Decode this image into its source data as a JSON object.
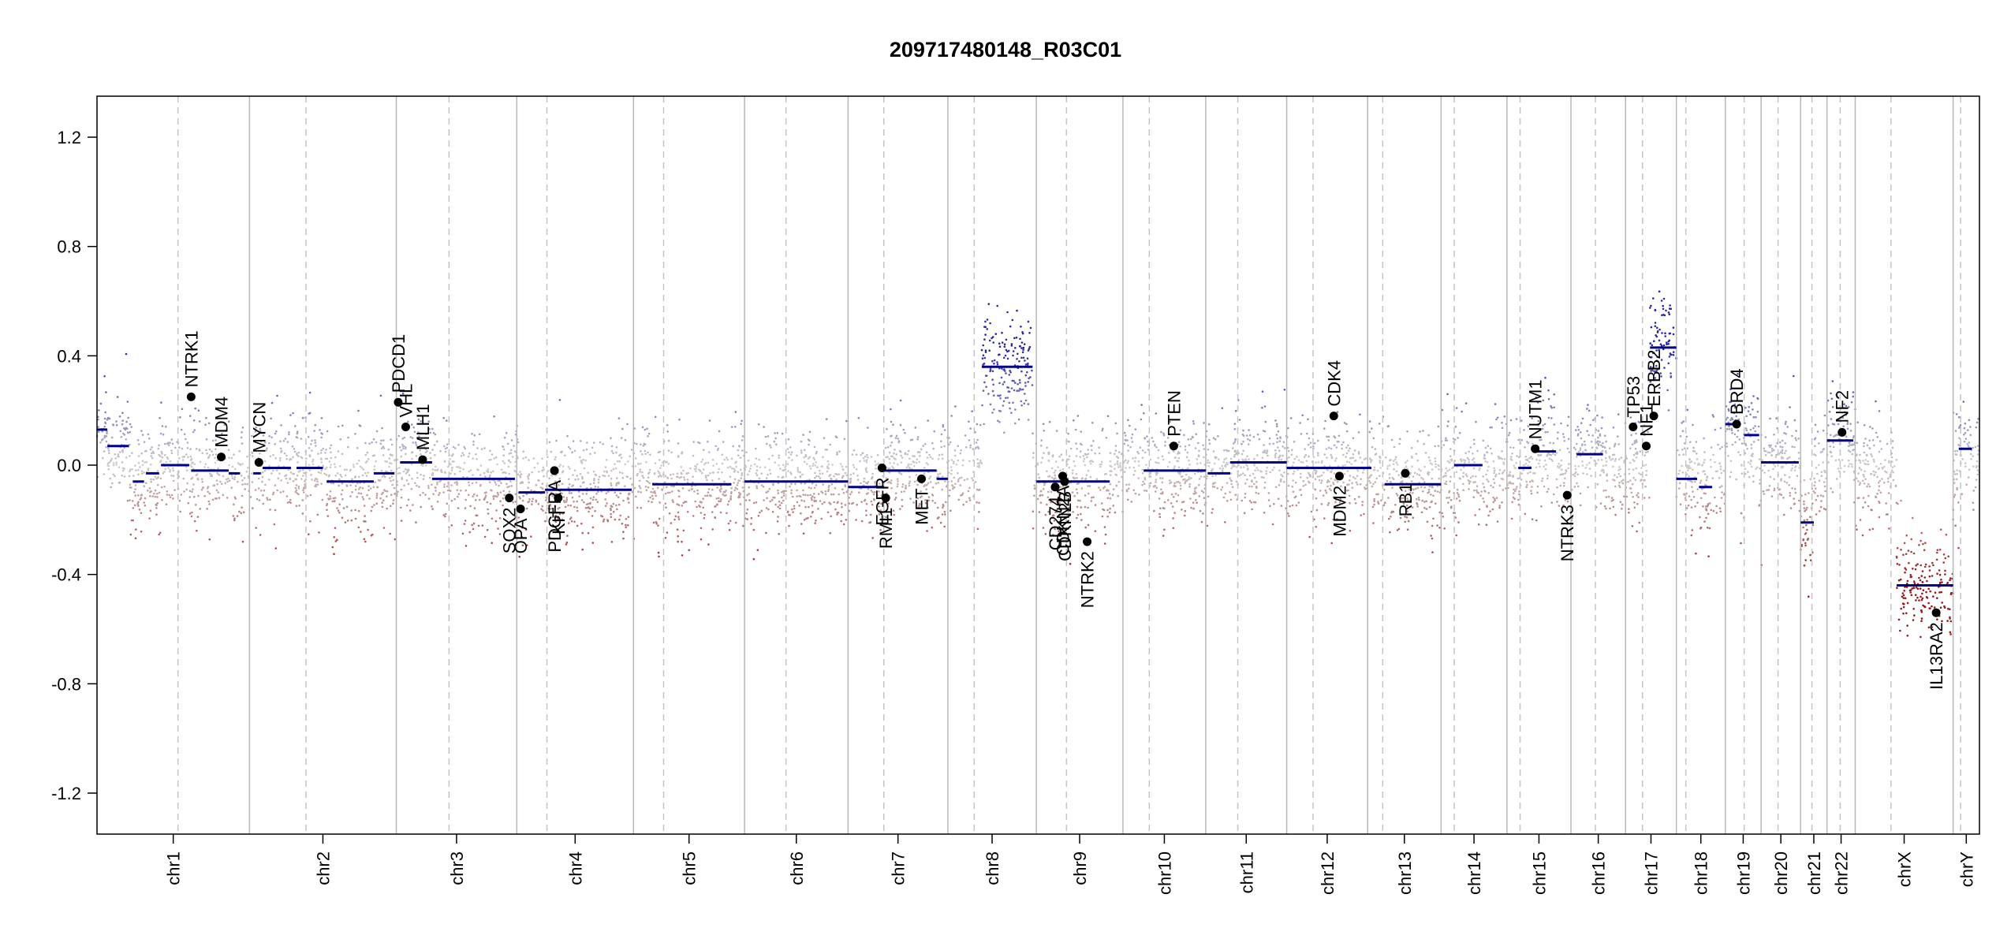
{
  "chart_data": {
    "type": "scatter",
    "title": "209717480148_R03C01",
    "xlabel": "",
    "ylabel": "",
    "ylim": [
      -1.35,
      1.35
    ],
    "yticks": [
      1.2,
      0.8,
      0.4,
      0.0,
      -0.4,
      -0.8,
      -1.2
    ],
    "ytick_labels": [
      "1.2",
      "0.8",
      "0.4",
      "0.0",
      "-0.4",
      "-0.8",
      "-1.2"
    ],
    "chromosomes": [
      {
        "name": "chr1",
        "start": 0.0,
        "end": 8.1,
        "cent": 4.3
      },
      {
        "name": "chr2",
        "start": 8.1,
        "end": 15.9,
        "cent": 11.1
      },
      {
        "name": "chr3",
        "start": 15.9,
        "end": 22.3,
        "cent": 18.7
      },
      {
        "name": "chr4",
        "start": 22.3,
        "end": 28.5,
        "cent": 23.9
      },
      {
        "name": "chr5",
        "start": 28.5,
        "end": 34.4,
        "cent": 30.1
      },
      {
        "name": "chr6",
        "start": 34.4,
        "end": 39.9,
        "cent": 36.6
      },
      {
        "name": "chr7",
        "start": 39.9,
        "end": 45.2,
        "cent": 41.8
      },
      {
        "name": "chr8",
        "start": 45.2,
        "end": 49.9,
        "cent": 46.6
      },
      {
        "name": "chr9",
        "start": 49.9,
        "end": 54.5,
        "cent": 51.5
      },
      {
        "name": "chr10",
        "start": 54.5,
        "end": 58.9,
        "cent": 55.9
      },
      {
        "name": "chr11",
        "start": 58.9,
        "end": 63.2,
        "cent": 60.6
      },
      {
        "name": "chr12",
        "start": 63.2,
        "end": 67.5,
        "cent": 64.6
      },
      {
        "name": "chr13",
        "start": 67.5,
        "end": 71.4,
        "cent": 68.3
      },
      {
        "name": "chr14",
        "start": 71.4,
        "end": 74.9,
        "cent": 72.1
      },
      {
        "name": "chr15",
        "start": 74.9,
        "end": 78.3,
        "cent": 75.6
      },
      {
        "name": "chr16",
        "start": 78.3,
        "end": 81.2,
        "cent": 79.6
      },
      {
        "name": "chr17",
        "start": 81.2,
        "end": 83.9,
        "cent": 82.1
      },
      {
        "name": "chr18",
        "start": 83.9,
        "end": 86.5,
        "cent": 84.4
      },
      {
        "name": "chr19",
        "start": 86.5,
        "end": 88.4,
        "cent": 87.5
      },
      {
        "name": "chr20",
        "start": 88.4,
        "end": 90.5,
        "cent": 89.3
      },
      {
        "name": "chr21",
        "start": 90.5,
        "end": 91.9,
        "cent": 91.1
      },
      {
        "name": "chr22",
        "start": 91.9,
        "end": 93.4,
        "cent": 92.6
      },
      {
        "name": "chrX",
        "start": 93.4,
        "end": 98.6,
        "cent": 95.3
      },
      {
        "name": "chrY",
        "start": 98.6,
        "end": 100.0,
        "cent": 99.0
      }
    ],
    "segments": [
      {
        "x0": 0.0,
        "x1": 0.55,
        "y": 0.13
      },
      {
        "x0": 0.55,
        "x1": 1.7,
        "y": 0.07
      },
      {
        "x0": 1.9,
        "x1": 2.5,
        "y": -0.06
      },
      {
        "x0": 2.6,
        "x1": 3.3,
        "y": -0.03
      },
      {
        "x0": 3.4,
        "x1": 4.9,
        "y": 0.0
      },
      {
        "x0": 5.0,
        "x1": 7.0,
        "y": -0.02
      },
      {
        "x0": 7.0,
        "x1": 7.6,
        "y": -0.03
      },
      {
        "x0": 8.3,
        "x1": 8.7,
        "y": -0.03
      },
      {
        "x0": 8.8,
        "x1": 10.3,
        "y": -0.01
      },
      {
        "x0": 10.6,
        "x1": 12.0,
        "y": -0.01
      },
      {
        "x0": 12.2,
        "x1": 14.7,
        "y": -0.06
      },
      {
        "x0": 14.7,
        "x1": 15.8,
        "y": -0.03
      },
      {
        "x0": 16.1,
        "x1": 17.8,
        "y": 0.01
      },
      {
        "x0": 17.8,
        "x1": 22.2,
        "y": -0.05
      },
      {
        "x0": 22.4,
        "x1": 23.8,
        "y": -0.1
      },
      {
        "x0": 23.8,
        "x1": 28.4,
        "y": -0.09
      },
      {
        "x0": 29.5,
        "x1": 33.7,
        "y": -0.07
      },
      {
        "x0": 34.4,
        "x1": 39.9,
        "y": -0.06
      },
      {
        "x0": 39.9,
        "x1": 41.8,
        "y": -0.08
      },
      {
        "x0": 41.8,
        "x1": 44.6,
        "y": -0.02
      },
      {
        "x0": 44.6,
        "x1": 45.2,
        "y": -0.05
      },
      {
        "x0": 47.0,
        "x1": 49.7,
        "y": 0.36
      },
      {
        "x0": 49.9,
        "x1": 53.8,
        "y": -0.06
      },
      {
        "x0": 55.6,
        "x1": 58.9,
        "y": -0.02
      },
      {
        "x0": 59.0,
        "x1": 60.2,
        "y": -0.03
      },
      {
        "x0": 60.2,
        "x1": 63.2,
        "y": 0.01
      },
      {
        "x0": 63.2,
        "x1": 67.7,
        "y": -0.01
      },
      {
        "x0": 68.4,
        "x1": 71.4,
        "y": -0.07
      },
      {
        "x0": 72.1,
        "x1": 73.6,
        "y": 0.0
      },
      {
        "x0": 75.5,
        "x1": 76.2,
        "y": -0.01
      },
      {
        "x0": 76.4,
        "x1": 77.5,
        "y": 0.05
      },
      {
        "x0": 78.6,
        "x1": 80.0,
        "y": 0.04
      },
      {
        "x0": 82.5,
        "x1": 83.9,
        "y": 0.43
      },
      {
        "x0": 83.9,
        "x1": 85.0,
        "y": -0.05
      },
      {
        "x0": 85.1,
        "x1": 85.8,
        "y": -0.08
      },
      {
        "x0": 86.5,
        "x1": 87.3,
        "y": 0.15
      },
      {
        "x0": 87.5,
        "x1": 88.3,
        "y": 0.11
      },
      {
        "x0": 88.4,
        "x1": 90.4,
        "y": 0.01
      },
      {
        "x0": 90.5,
        "x1": 91.2,
        "y": -0.21
      },
      {
        "x0": 91.9,
        "x1": 93.3,
        "y": 0.09
      },
      {
        "x0": 95.6,
        "x1": 98.6,
        "y": -0.44
      },
      {
        "x0": 98.9,
        "x1": 99.6,
        "y": 0.06
      }
    ],
    "genes": [
      {
        "name": "NTRK1",
        "x": 5.0,
        "y": 0.25
      },
      {
        "name": "MDM4",
        "x": 6.6,
        "y": 0.03
      },
      {
        "name": "MYCN",
        "x": 8.6,
        "y": 0.01
      },
      {
        "name": "PDCD1",
        "x": 16.0,
        "y": 0.23
      },
      {
        "name": "VHL",
        "x": 16.4,
        "y": 0.14
      },
      {
        "name": "MLH1",
        "x": 17.3,
        "y": 0.02
      },
      {
        "name": "SOX2",
        "x": 21.9,
        "y": -0.12
      },
      {
        "name": "OPA",
        "x": 22.5,
        "y": -0.16
      },
      {
        "name": "PDGFRA",
        "x": 24.3,
        "y": -0.02
      },
      {
        "name": "KIT",
        "x": 24.5,
        "y": -0.12
      },
      {
        "name": "EGFR",
        "x": 41.7,
        "y": -0.01
      },
      {
        "name": "RMI1",
        "x": 41.9,
        "y": -0.12
      },
      {
        "name": "MET",
        "x": 43.8,
        "y": -0.05
      },
      {
        "name": "CD274",
        "x": 50.9,
        "y": -0.08
      },
      {
        "name": "CDKN2A",
        "x": 51.3,
        "y": -0.04
      },
      {
        "name": "CDKN2B",
        "x": 51.4,
        "y": -0.06
      },
      {
        "name": "NTRK2",
        "x": 52.6,
        "y": -0.28
      },
      {
        "name": "PTEN",
        "x": 57.2,
        "y": 0.07
      },
      {
        "name": "CDK4",
        "x": 65.7,
        "y": 0.18
      },
      {
        "name": "MDM2",
        "x": 66.0,
        "y": -0.04
      },
      {
        "name": "RB1",
        "x": 69.5,
        "y": -0.03
      },
      {
        "name": "NUTM1",
        "x": 76.4,
        "y": 0.06
      },
      {
        "name": "NTRK3",
        "x": 78.1,
        "y": -0.11
      },
      {
        "name": "TP53",
        "x": 81.6,
        "y": 0.14
      },
      {
        "name": "NF1",
        "x": 82.3,
        "y": 0.07
      },
      {
        "name": "ERBB2",
        "x": 82.7,
        "y": 0.18
      },
      {
        "name": "BRD4",
        "x": 87.1,
        "y": 0.15
      },
      {
        "name": "NF2",
        "x": 92.7,
        "y": 0.12
      },
      {
        "name": "IL13RA2",
        "x": 97.7,
        "y": -0.54
      }
    ]
  }
}
